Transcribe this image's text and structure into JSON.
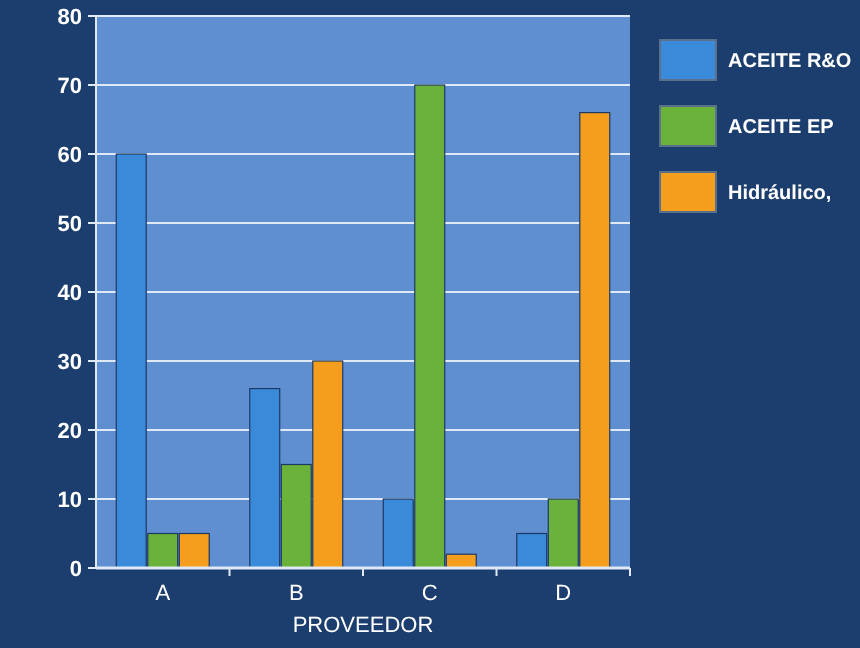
{
  "chart_data": {
    "type": "bar",
    "xlabel": "PROVEEDOR",
    "categories": [
      "A",
      "B",
      "C",
      "D"
    ],
    "series": [
      {
        "name": "ACEITE R&O",
        "color": "#3b8ad9",
        "values": [
          60,
          26,
          10,
          5
        ]
      },
      {
        "name": "ACEITE EP",
        "color": "#6ab23a",
        "values": [
          5,
          15,
          70,
          10
        ]
      },
      {
        "name": "Hidráulico,",
        "color": "#f59d1c",
        "values": [
          5,
          30,
          2,
          66
        ]
      }
    ],
    "ylim": [
      0,
      80
    ],
    "yticks": [
      0,
      10,
      20,
      30,
      40,
      50,
      60,
      70,
      80
    ],
    "grid": "y",
    "legend": "right"
  }
}
